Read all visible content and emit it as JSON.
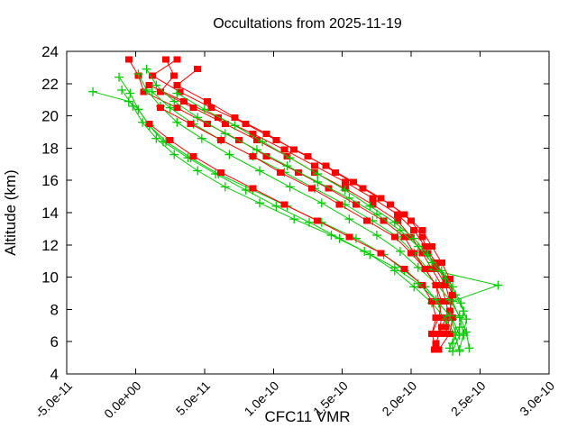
{
  "chart_data": {
    "type": "line",
    "title": "Occultations from 2025-11-19",
    "xlabel": "CFC11 VMR",
    "ylabel": "Altitude (km)",
    "grid": false,
    "legend": "none",
    "colors": {
      "red_series": "#ff0000",
      "green_series": "#00cc00",
      "axis": "#000000",
      "background": "#ffffff"
    },
    "x_axis": {
      "min": -5e-11,
      "max": 3e-10,
      "tick_values": [
        -5e-11,
        0,
        5e-11,
        1e-10,
        1.5e-10,
        2e-10,
        2.5e-10,
        3e-10
      ],
      "tick_labels": [
        "-5.0e-11",
        "0.0e+00",
        "5.0e-11",
        "1.0e-10",
        "1.5e-10",
        "2.0e-10",
        "2.5e-10",
        "3.0e-10"
      ]
    },
    "y_axis": {
      "min": 4,
      "max": 24,
      "tick_values": [
        4,
        6,
        8,
        10,
        12,
        14,
        16,
        18,
        20,
        22,
        24
      ],
      "tick_labels": [
        "4",
        "6",
        "8",
        "10",
        "12",
        "14",
        "16",
        "18",
        "20",
        "22",
        "24"
      ]
    },
    "series": [
      {
        "name": "occultation-profile-red-1",
        "color": "#ff0000",
        "marker": "square",
        "points": [
          [
            -5e-12,
            23.5
          ],
          [
            2e-12,
            22.5
          ],
          [
            6e-12,
            21.5
          ],
          [
            3e-11,
            20.5
          ],
          [
            5.2e-11,
            19.5
          ],
          [
            7.5e-11,
            18.5
          ],
          [
            9.5e-11,
            17.5
          ],
          [
            1.18e-10,
            16.5
          ],
          [
            1.4e-10,
            15.5
          ],
          [
            1.6e-10,
            14.5
          ],
          [
            1.8e-10,
            13.5
          ],
          [
            1.95e-10,
            12.5
          ],
          [
            2.02e-10,
            11.5
          ],
          [
            2.1e-10,
            10.5
          ],
          [
            2.18e-10,
            9.5
          ],
          [
            2.2e-10,
            8.5
          ],
          [
            2.22e-10,
            7.5
          ],
          [
            2.2e-10,
            6.5
          ],
          [
            2.17e-10,
            5.5
          ]
        ]
      },
      {
        "name": "occultation-profile-green-1",
        "color": "#00cc00",
        "marker": "plus",
        "points": [
          [
            -3.1e-11,
            21.5
          ],
          [
            -5e-12,
            20.9
          ],
          [
            2e-12,
            20.4
          ],
          [
            1e-11,
            19.4
          ],
          [
            2.2e-11,
            18.4
          ],
          [
            4e-11,
            17.4
          ],
          [
            6e-11,
            16.4
          ],
          [
            8.5e-11,
            15.4
          ],
          [
            1.1e-10,
            14.4
          ],
          [
            1.35e-10,
            13.4
          ],
          [
            1.6e-10,
            12.4
          ],
          [
            1.8e-10,
            11.4
          ],
          [
            1.95e-10,
            10.4
          ],
          [
            2.1e-10,
            9.4
          ],
          [
            2.2e-10,
            8.4
          ],
          [
            2.3e-10,
            7.4
          ],
          [
            2.35e-10,
            6.4
          ],
          [
            2.3e-10,
            5.4
          ]
        ]
      },
      {
        "name": "occultation-profile-red-2",
        "color": "#ff0000",
        "marker": "square",
        "points": [
          [
            2.2e-11,
            23.5
          ],
          [
            2.8e-11,
            22.5
          ],
          [
            1.8e-11,
            21.5
          ],
          [
            4.2e-11,
            20.5
          ],
          [
            6.5e-11,
            19.5
          ],
          [
            8.8e-11,
            18.5
          ],
          [
            1.1e-10,
            17.5
          ],
          [
            1.3e-10,
            16.5
          ],
          [
            1.52e-10,
            15.5
          ],
          [
            1.72e-10,
            14.5
          ],
          [
            1.9e-10,
            13.5
          ],
          [
            2e-10,
            12.5
          ],
          [
            2.08e-10,
            11.5
          ],
          [
            2.15e-10,
            10.5
          ],
          [
            2.22e-10,
            9.5
          ],
          [
            2.25e-10,
            8.5
          ],
          [
            2.28e-10,
            7.5
          ],
          [
            2.25e-10,
            6.5
          ]
        ]
      },
      {
        "name": "occultation-profile-green-2",
        "color": "#00cc00",
        "marker": "plus",
        "points": [
          [
            -1.2e-11,
            22.4
          ],
          [
            -4e-12,
            21.4
          ],
          [
            2e-12,
            20.4
          ],
          [
            1e-11,
            19.4
          ],
          [
            2e-11,
            18.4
          ],
          [
            3.8e-11,
            17.4
          ],
          [
            5.8e-11,
            16.4
          ],
          [
            8e-11,
            15.4
          ],
          [
            1.02e-10,
            14.4
          ],
          [
            1.26e-10,
            13.4
          ],
          [
            1.48e-10,
            12.4
          ],
          [
            1.7e-10,
            11.4
          ],
          [
            1.88e-10,
            10.4
          ],
          [
            2.02e-10,
            9.4
          ],
          [
            2.15e-10,
            8.4
          ],
          [
            2.25e-10,
            7.4
          ],
          [
            2.32e-10,
            6.4
          ],
          [
            2.35e-10,
            5.4
          ]
        ]
      },
      {
        "name": "occultation-profile-red-3",
        "color": "#ff0000",
        "marker": "square",
        "points": [
          [
            3e-11,
            23.5
          ],
          [
            1.2e-11,
            22.5
          ],
          [
            3.2e-11,
            21.5
          ],
          [
            5.5e-11,
            20.5
          ],
          [
            8e-11,
            19.5
          ],
          [
            1.02e-10,
            18.5
          ],
          [
            1.25e-10,
            17.5
          ],
          [
            1.45e-10,
            16.5
          ],
          [
            1.65e-10,
            15.5
          ],
          [
            1.85e-10,
            14.5
          ],
          [
            2e-10,
            13.5
          ],
          [
            2.08e-10,
            12.5
          ],
          [
            2.12e-10,
            11.5
          ],
          [
            2.18e-10,
            10.5
          ],
          [
            2.25e-10,
            9.5
          ],
          [
            2.28e-10,
            8.5
          ],
          [
            2.3e-10,
            7.5
          ],
          [
            2.28e-10,
            6.5
          ],
          [
            2.2e-10,
            5.5
          ]
        ]
      },
      {
        "name": "occultation-profile-green-3",
        "color": "#00cc00",
        "marker": "plus",
        "points": [
          [
            2e-12,
            22.6
          ],
          [
            8e-12,
            21.6
          ],
          [
            1.8e-11,
            20.6
          ],
          [
            3e-11,
            19.6
          ],
          [
            4.8e-11,
            18.6
          ],
          [
            6.8e-11,
            17.6
          ],
          [
            9e-11,
            16.6
          ],
          [
            1.12e-10,
            15.6
          ],
          [
            1.35e-10,
            14.6
          ],
          [
            1.55e-10,
            13.6
          ],
          [
            1.75e-10,
            12.6
          ],
          [
            1.92e-10,
            11.6
          ],
          [
            2.05e-10,
            10.6
          ],
          [
            2.18e-10,
            9.6
          ],
          [
            2.28e-10,
            8.6
          ],
          [
            2.35e-10,
            7.6
          ],
          [
            2.4e-10,
            6.6
          ],
          [
            2.42e-10,
            5.6
          ]
        ]
      },
      {
        "name": "occultation-profile-red-4",
        "color": "#ff0000",
        "marker": "square",
        "points": [
          [
            1e-11,
            21.9
          ],
          [
            3.5e-11,
            20.9
          ],
          [
            6e-11,
            19.9
          ],
          [
            8.5e-11,
            18.9
          ],
          [
            1.08e-10,
            17.9
          ],
          [
            1.3e-10,
            16.9
          ],
          [
            1.52e-10,
            15.9
          ],
          [
            1.72e-10,
            14.9
          ],
          [
            1.9e-10,
            13.9
          ],
          [
            2.02e-10,
            12.9
          ],
          [
            2.1e-10,
            11.9
          ],
          [
            2.18e-10,
            10.9
          ],
          [
            2.25e-10,
            9.9
          ],
          [
            2.3e-10,
            8.9
          ],
          [
            2.28e-10,
            7.9
          ],
          [
            2.25e-10,
            6.9
          ]
        ]
      },
      {
        "name": "occultation-profile-green-4",
        "color": "#00cc00",
        "marker": "plus",
        "points": [
          [
            1.2e-11,
            21.5
          ],
          [
            2.5e-11,
            20.5
          ],
          [
            4.2e-11,
            19.5
          ],
          [
            6.2e-11,
            18.5
          ],
          [
            8.5e-11,
            17.5
          ],
          [
            1.08e-10,
            16.5
          ],
          [
            1.3e-10,
            15.5
          ],
          [
            1.52e-10,
            14.5
          ],
          [
            1.72e-10,
            13.5
          ],
          [
            1.9e-10,
            12.5
          ],
          [
            2.02e-10,
            11.5
          ],
          [
            2.12e-10,
            10.5
          ],
          [
            2.63e-10,
            9.5
          ],
          [
            2.3e-10,
            8.5
          ],
          [
            2.35e-10,
            7.5
          ],
          [
            2.38e-10,
            6.5
          ],
          [
            2.35e-10,
            5.5
          ]
        ]
      },
      {
        "name": "occultation-profile-red-5",
        "color": "#ff0000",
        "marker": "square",
        "points": [
          [
            1e-11,
            19.5
          ],
          [
            2.5e-11,
            18.5
          ],
          [
            4.2e-11,
            17.5
          ],
          [
            6.2e-11,
            16.5
          ],
          [
            8.5e-11,
            15.5
          ],
          [
            1.08e-10,
            14.5
          ],
          [
            1.32e-10,
            13.5
          ],
          [
            1.55e-10,
            12.5
          ],
          [
            1.78e-10,
            11.5
          ],
          [
            1.95e-10,
            10.5
          ],
          [
            2.08e-10,
            9.5
          ],
          [
            2.15e-10,
            8.5
          ],
          [
            2.18e-10,
            7.5
          ],
          [
            2.15e-10,
            6.5
          ],
          [
            2.18e-10,
            5.5
          ]
        ]
      },
      {
        "name": "occultation-profile-green-5",
        "color": "#00cc00",
        "marker": "plus",
        "points": [
          [
            8e-12,
            22.9
          ],
          [
            1.5e-11,
            21.9
          ],
          [
            2.8e-11,
            20.9
          ],
          [
            4.5e-11,
            19.9
          ],
          [
            6.5e-11,
            18.9
          ],
          [
            8.8e-11,
            17.9
          ],
          [
            1.1e-10,
            16.9
          ],
          [
            1.32e-10,
            15.9
          ],
          [
            1.55e-10,
            14.9
          ],
          [
            1.75e-10,
            13.9
          ],
          [
            1.92e-10,
            12.9
          ],
          [
            2.05e-10,
            11.9
          ],
          [
            2.15e-10,
            10.9
          ],
          [
            2.25e-10,
            9.9
          ],
          [
            2.32e-10,
            8.9
          ],
          [
            2.38e-10,
            7.9
          ],
          [
            2.35e-10,
            6.9
          ],
          [
            2.3e-10,
            5.9
          ]
        ]
      },
      {
        "name": "occultation-profile-red-6",
        "color": "#ff0000",
        "marker": "square",
        "points": [
          [
            4.5e-11,
            22.9
          ],
          [
            3e-11,
            21.9
          ],
          [
            5.2e-11,
            20.9
          ],
          [
            7.2e-11,
            19.9
          ],
          [
            9.5e-11,
            18.9
          ],
          [
            1.15e-10,
            17.9
          ],
          [
            1.38e-10,
            16.9
          ],
          [
            1.58e-10,
            15.9
          ],
          [
            1.78e-10,
            14.9
          ],
          [
            1.95e-10,
            13.9
          ],
          [
            2.08e-10,
            12.9
          ],
          [
            2.15e-10,
            11.9
          ],
          [
            2.22e-10,
            10.9
          ],
          [
            2.28e-10,
            9.9
          ],
          [
            2.3e-10,
            8.9
          ],
          [
            2.28e-10,
            7.9
          ],
          [
            2.22e-10,
            6.9
          ],
          [
            2.18e-10,
            5.9
          ]
        ]
      },
      {
        "name": "occultation-profile-green-6",
        "color": "#00cc00",
        "marker": "plus",
        "points": [
          [
            3e-11,
            21.4
          ],
          [
            5e-11,
            20.4
          ],
          [
            7.2e-11,
            19.4
          ],
          [
            9.2e-11,
            18.4
          ],
          [
            1.12e-10,
            17.4
          ],
          [
            1.32e-10,
            16.4
          ],
          [
            1.52e-10,
            15.4
          ],
          [
            1.7e-10,
            14.4
          ],
          [
            1.88e-10,
            13.4
          ],
          [
            2.02e-10,
            12.4
          ],
          [
            2.12e-10,
            11.4
          ],
          [
            2.22e-10,
            10.4
          ],
          [
            2.3e-10,
            9.4
          ],
          [
            2.36e-10,
            8.4
          ],
          [
            2.4e-10,
            7.4
          ],
          [
            2.38e-10,
            6.4
          ]
        ]
      },
      {
        "name": "occultation-profile-red-7",
        "color": "#ff0000",
        "marker": "square",
        "points": [
          [
            1.8e-11,
            20.5
          ],
          [
            4e-11,
            19.5
          ],
          [
            6.2e-11,
            18.5
          ],
          [
            8.5e-11,
            17.5
          ],
          [
            1.05e-10,
            16.5
          ],
          [
            1.28e-10,
            15.5
          ],
          [
            1.48e-10,
            14.5
          ],
          [
            1.68e-10,
            13.5
          ],
          [
            1.88e-10,
            12.5
          ],
          [
            2e-10,
            11.5
          ],
          [
            2.1e-10,
            10.5
          ],
          [
            2.18e-10,
            9.5
          ],
          [
            2.22e-10,
            8.5
          ],
          [
            2.2e-10,
            7.5
          ],
          [
            2.15e-10,
            6.5
          ]
        ]
      },
      {
        "name": "occultation-profile-green-7",
        "color": "#00cc00",
        "marker": "plus",
        "points": [
          [
            -1e-11,
            21.6
          ],
          [
            -2e-12,
            20.6
          ],
          [
            5e-12,
            19.6
          ],
          [
            1.5e-11,
            18.6
          ],
          [
            2.8e-11,
            17.6
          ],
          [
            4.5e-11,
            16.6
          ],
          [
            6.5e-11,
            15.6
          ],
          [
            9e-11,
            14.6
          ],
          [
            1.15e-10,
            13.6
          ],
          [
            1.42e-10,
            12.6
          ],
          [
            1.66e-10,
            11.6
          ],
          [
            1.88e-10,
            10.6
          ],
          [
            2.05e-10,
            9.6
          ],
          [
            2.18e-10,
            8.6
          ],
          [
            2.28e-10,
            7.6
          ],
          [
            2.32e-10,
            6.6
          ],
          [
            2.28e-10,
            5.6
          ]
        ]
      }
    ]
  }
}
